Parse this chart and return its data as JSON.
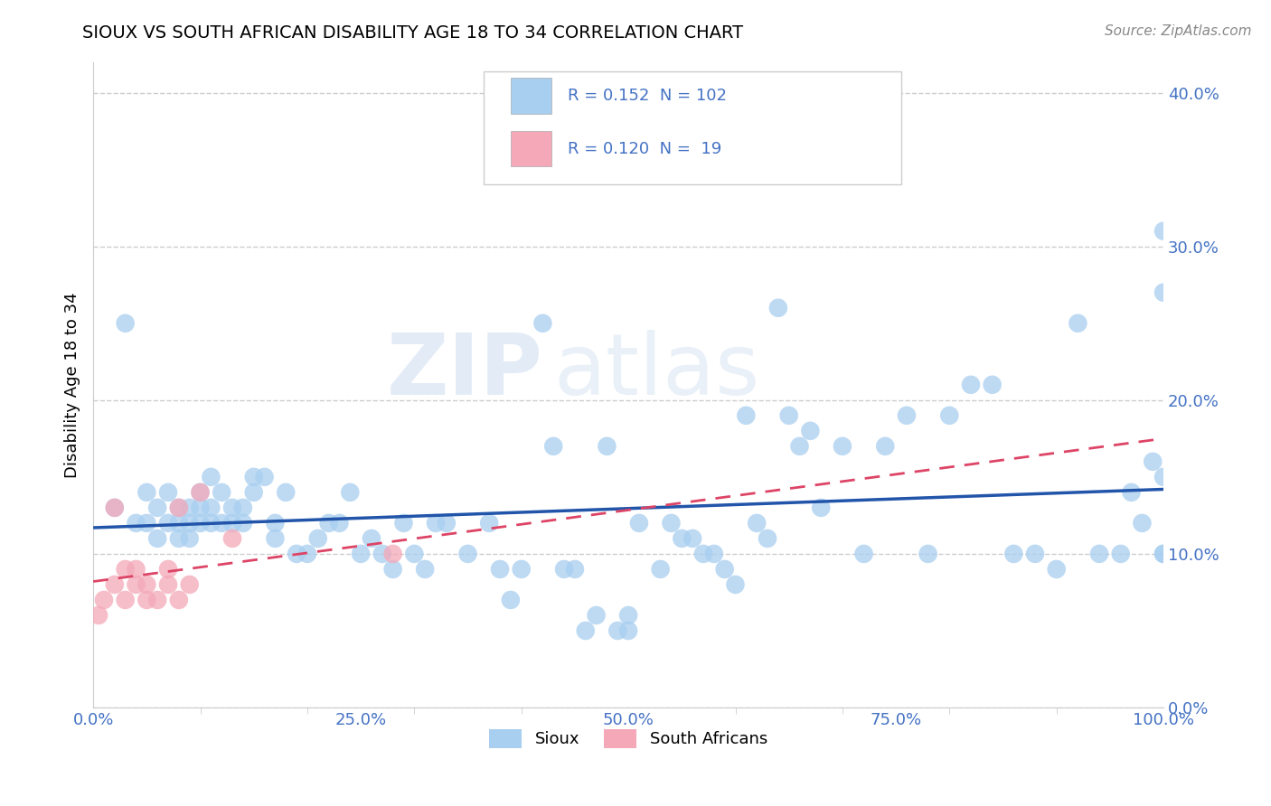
{
  "title": "SIOUX VS SOUTH AFRICAN DISABILITY AGE 18 TO 34 CORRELATION CHART",
  "source": "Source: ZipAtlas.com",
  "ylabel": "Disability Age 18 to 34",
  "xlim": [
    0.0,
    1.0
  ],
  "ylim": [
    0.0,
    0.42
  ],
  "xticks": [
    0.0,
    0.25,
    0.5,
    0.75,
    1.0
  ],
  "xticklabels": [
    "0.0%",
    "25.0%",
    "50.0%",
    "75.0%",
    "100.0%"
  ],
  "yticks": [
    0.0,
    0.1,
    0.2,
    0.3,
    0.4
  ],
  "yticklabels": [
    "0.0%",
    "10.0%",
    "20.0%",
    "30.0%",
    "40.0%"
  ],
  "sioux_color": "#A8CEF0",
  "sa_color": "#F4A8B8",
  "sioux_line_color": "#2255AA",
  "sa_line_color": "#DD4466",
  "watermark_zip": "ZIP",
  "watermark_atlas": "atlas",
  "legend_r_sioux": "0.152",
  "legend_n_sioux": "102",
  "legend_r_sa": "0.120",
  "legend_n_sa": "19",
  "background_color": "#FFFFFF",
  "grid_color": "#CCCCCC",
  "tick_color": "#4472C4",
  "text_color_blue": "#4472C4",
  "sioux_x": [
    0.02,
    0.03,
    0.04,
    0.05,
    0.05,
    0.06,
    0.06,
    0.07,
    0.07,
    0.08,
    0.08,
    0.08,
    0.09,
    0.09,
    0.09,
    0.1,
    0.1,
    0.1,
    0.11,
    0.11,
    0.11,
    0.12,
    0.12,
    0.13,
    0.13,
    0.14,
    0.14,
    0.15,
    0.15,
    0.16,
    0.17,
    0.17,
    0.18,
    0.19,
    0.2,
    0.21,
    0.22,
    0.23,
    0.24,
    0.25,
    0.26,
    0.27,
    0.28,
    0.29,
    0.3,
    0.31,
    0.32,
    0.33,
    0.35,
    0.37,
    0.38,
    0.39,
    0.4,
    0.42,
    0.43,
    0.44,
    0.45,
    0.46,
    0.47,
    0.48,
    0.49,
    0.5,
    0.5,
    0.51,
    0.53,
    0.54,
    0.55,
    0.56,
    0.57,
    0.58,
    0.59,
    0.6,
    0.61,
    0.62,
    0.63,
    0.64,
    0.65,
    0.66,
    0.67,
    0.68,
    0.7,
    0.72,
    0.74,
    0.76,
    0.78,
    0.8,
    0.82,
    0.84,
    0.86,
    0.88,
    0.9,
    0.92,
    0.94,
    0.96,
    0.97,
    0.98,
    0.99,
    1.0,
    1.0,
    1.0,
    1.0,
    1.0
  ],
  "sioux_y": [
    0.13,
    0.25,
    0.12,
    0.14,
    0.12,
    0.13,
    0.11,
    0.12,
    0.14,
    0.13,
    0.12,
    0.11,
    0.13,
    0.12,
    0.11,
    0.14,
    0.12,
    0.13,
    0.15,
    0.12,
    0.13,
    0.14,
    0.12,
    0.12,
    0.13,
    0.13,
    0.12,
    0.15,
    0.14,
    0.15,
    0.12,
    0.11,
    0.14,
    0.1,
    0.1,
    0.11,
    0.12,
    0.12,
    0.14,
    0.1,
    0.11,
    0.1,
    0.09,
    0.12,
    0.1,
    0.09,
    0.12,
    0.12,
    0.1,
    0.12,
    0.09,
    0.07,
    0.09,
    0.25,
    0.17,
    0.09,
    0.09,
    0.05,
    0.06,
    0.17,
    0.05,
    0.06,
    0.05,
    0.12,
    0.09,
    0.12,
    0.11,
    0.11,
    0.1,
    0.1,
    0.09,
    0.08,
    0.19,
    0.12,
    0.11,
    0.26,
    0.19,
    0.17,
    0.18,
    0.13,
    0.17,
    0.1,
    0.17,
    0.19,
    0.1,
    0.19,
    0.21,
    0.21,
    0.1,
    0.1,
    0.09,
    0.25,
    0.1,
    0.1,
    0.14,
    0.12,
    0.16,
    0.15,
    0.1,
    0.27,
    0.1,
    0.31
  ],
  "sa_x": [
    0.005,
    0.01,
    0.02,
    0.02,
    0.03,
    0.03,
    0.04,
    0.04,
    0.05,
    0.05,
    0.06,
    0.07,
    0.07,
    0.08,
    0.08,
    0.09,
    0.1,
    0.13,
    0.28
  ],
  "sa_y": [
    0.06,
    0.07,
    0.13,
    0.08,
    0.09,
    0.07,
    0.09,
    0.08,
    0.07,
    0.08,
    0.07,
    0.08,
    0.09,
    0.13,
    0.07,
    0.08,
    0.14,
    0.11,
    0.1
  ]
}
